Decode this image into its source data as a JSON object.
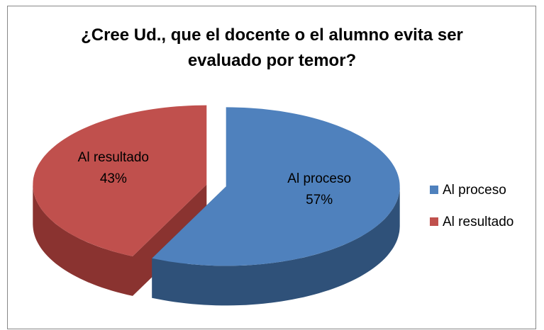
{
  "chart_data": {
    "type": "pie",
    "title": "¿Cree Ud., que el docente o el alumno evita ser evaluado por temor?",
    "categories": [
      "Al proceso",
      "Al resultado"
    ],
    "values": [
      57,
      43
    ],
    "value_labels": [
      "57%",
      "43%"
    ],
    "colors": [
      "#4f81bd",
      "#c0504d"
    ],
    "side_colors": [
      "#2f5179",
      "#8a3330"
    ],
    "legend": "right"
  }
}
